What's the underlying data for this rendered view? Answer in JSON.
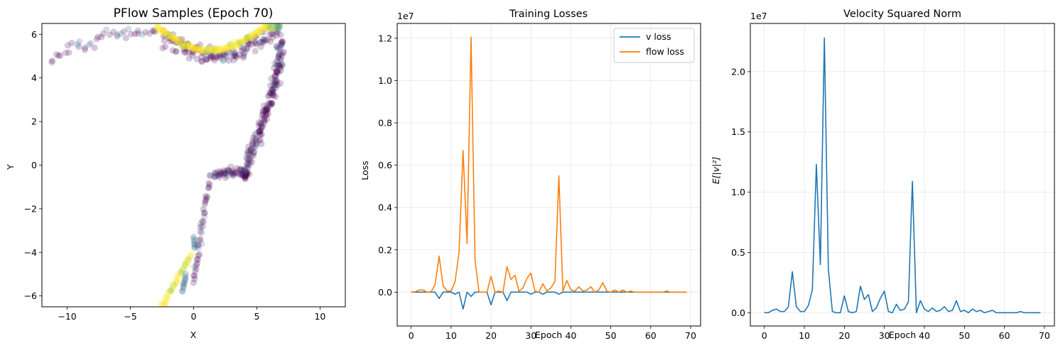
{
  "chart_data": [
    {
      "type": "scatter",
      "title": "PFlow Samples (Epoch 70)",
      "xlabel": "X",
      "ylabel": "Y",
      "xlim": [
        -12,
        12
      ],
      "ylim": [
        -6.5,
        6.5
      ],
      "xticks": [
        "−10",
        "−5",
        "0",
        "5",
        "10"
      ],
      "yticks": [
        "−6",
        "−4",
        "−2",
        "0",
        "2",
        "4",
        "6"
      ],
      "colormap": [
        "#440154",
        "#31688e",
        "#35b779",
        "#fde725"
      ],
      "point_alpha": 0.22,
      "grid": false
    },
    {
      "type": "line",
      "title": "Training Losses",
      "xlabel": "Epoch",
      "ylabel": "Loss",
      "offset_text": "1e7",
      "xlim": [
        -3.5,
        72.5
      ],
      "ylim": [
        -0.16,
        1.27
      ],
      "xticks": [
        "0",
        "10",
        "20",
        "30",
        "40",
        "50",
        "60",
        "70"
      ],
      "yticks": [
        "0.0",
        "0.2",
        "0.4",
        "0.6",
        "0.8",
        "1.0",
        "1.2"
      ],
      "legend_position": "top-right",
      "grid": true,
      "series": [
        {
          "name": "v loss",
          "color": "#1f77b4",
          "values": [
            0,
            0,
            0,
            0,
            0,
            0,
            0,
            -0.03,
            0,
            0,
            0,
            -0.01,
            0,
            -0.08,
            0,
            -0.02,
            0,
            0,
            0,
            0,
            -0.06,
            0,
            0,
            0,
            -0.04,
            0,
            0,
            0,
            0,
            0,
            -0.01,
            0,
            0,
            -0.01,
            0,
            0,
            0,
            -0.01,
            0,
            0,
            0,
            0,
            0,
            0,
            0,
            0,
            0,
            0,
            0,
            0,
            0,
            0,
            0,
            0,
            0,
            0,
            0,
            0,
            0,
            0,
            0,
            0,
            0,
            0,
            0,
            0,
            0,
            0,
            0,
            0
          ]
        },
        {
          "name": "flow loss",
          "color": "#ff7f0e",
          "values": [
            0,
            0.002,
            0.01,
            0.01,
            0,
            0.002,
            0.035,
            0.17,
            0.03,
            0.005,
            0.005,
            0.05,
            0.19,
            0.67,
            0.23,
            1.205,
            0.15,
            0,
            0,
            0,
            0.075,
            0,
            0.005,
            0,
            0.12,
            0.06,
            0.08,
            0.005,
            0.02,
            0.065,
            0.09,
            0.005,
            0,
            0.04,
            0.005,
            0.02,
            0.05,
            0.55,
            0.005,
            0.055,
            0.01,
            0.005,
            0.025,
            0.005,
            0.01,
            0.025,
            0,
            0.01,
            0.045,
            0.005,
            0,
            0.01,
            0,
            0.01,
            0,
            0.005,
            0,
            0,
            0,
            0,
            0,
            0,
            0,
            0,
            0.005,
            0,
            0,
            0,
            0,
            0
          ]
        }
      ]
    },
    {
      "type": "line",
      "title": "Velocity Squared Norm",
      "xlabel": "Epoch",
      "ylabel": "E[|v|²]",
      "offset_text": "1e7",
      "xlim": [
        -3.5,
        72.5
      ],
      "ylim": [
        -0.11,
        2.4
      ],
      "xticks": [
        "0",
        "10",
        "20",
        "30",
        "40",
        "50",
        "60",
        "70"
      ],
      "yticks": [
        "0.0",
        "0.5",
        "1.0",
        "1.5",
        "2.0"
      ],
      "grid": true,
      "series": [
        {
          "color": "#1f77b4",
          "values": [
            0,
            0,
            0.02,
            0.03,
            0.01,
            0.01,
            0.05,
            0.34,
            0.05,
            0.01,
            0.01,
            0.06,
            0.19,
            1.23,
            0.4,
            2.28,
            0.36,
            0.01,
            0,
            0,
            0.14,
            0.01,
            0,
            0.01,
            0.22,
            0.11,
            0.15,
            0.01,
            0.04,
            0.12,
            0.18,
            0.01,
            0,
            0.07,
            0.02,
            0.03,
            0.09,
            1.09,
            0,
            0.1,
            0.03,
            0.01,
            0.04,
            0.01,
            0.02,
            0.05,
            0.01,
            0.02,
            0.1,
            0.01,
            0.02,
            0,
            0.03,
            0.01,
            0.02,
            0,
            0.01,
            0.02,
            0,
            0,
            0,
            0,
            0,
            0,
            0.01,
            0,
            0,
            0,
            0,
            0
          ]
        }
      ]
    }
  ]
}
